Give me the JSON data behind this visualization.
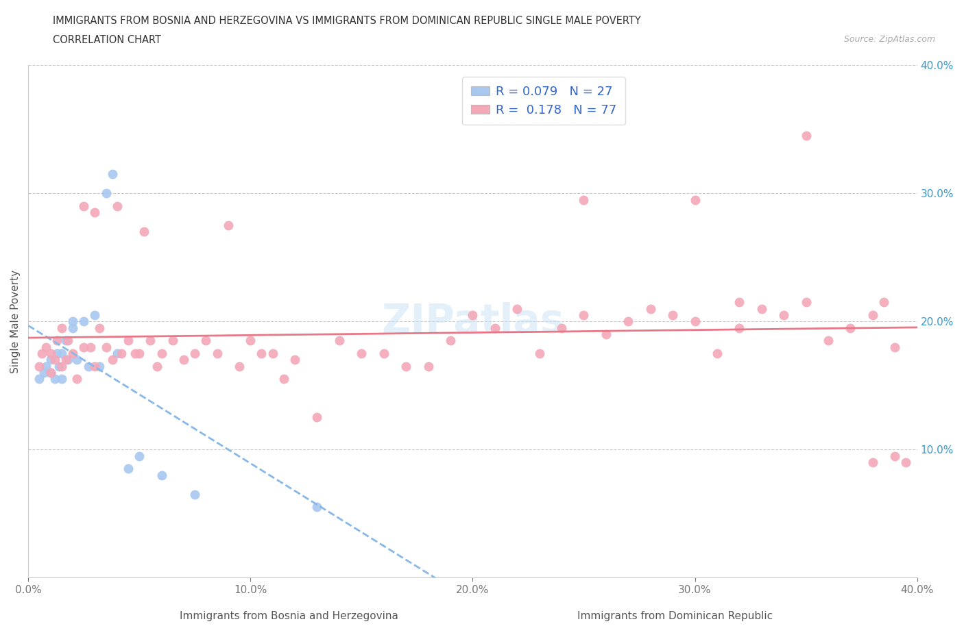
{
  "title_line1": "IMMIGRANTS FROM BOSNIA AND HERZEGOVINA VS IMMIGRANTS FROM DOMINICAN REPUBLIC SINGLE MALE POVERTY",
  "title_line2": "CORRELATION CHART",
  "source_text": "Source: ZipAtlas.com",
  "ylabel": "Single Male Poverty",
  "xlim": [
    0.0,
    0.4
  ],
  "ylim": [
    0.0,
    0.4
  ],
  "xtick_labels": [
    "0.0%",
    "10.0%",
    "20.0%",
    "30.0%",
    "40.0%"
  ],
  "xtick_vals": [
    0.0,
    0.1,
    0.2,
    0.3,
    0.4
  ],
  "ytick_labels": [
    "10.0%",
    "20.0%",
    "30.0%",
    "40.0%"
  ],
  "ytick_vals": [
    0.1,
    0.2,
    0.3,
    0.4
  ],
  "bosnia_color": "#a8c8f0",
  "dominican_color": "#f4a8b8",
  "R_bosnia": 0.079,
  "N_bosnia": 27,
  "R_dominican": 0.178,
  "N_dominican": 77,
  "watermark": "ZIPatlas",
  "bosnia_x": [
    0.005,
    0.007,
    0.008,
    0.01,
    0.01,
    0.012,
    0.013,
    0.014,
    0.015,
    0.015,
    0.017,
    0.018,
    0.02,
    0.02,
    0.022,
    0.025,
    0.027,
    0.03,
    0.032,
    0.035,
    0.038,
    0.04,
    0.045,
    0.05,
    0.06,
    0.075,
    0.13
  ],
  "bosnia_y": [
    0.155,
    0.16,
    0.165,
    0.16,
    0.17,
    0.155,
    0.175,
    0.165,
    0.175,
    0.155,
    0.185,
    0.17,
    0.195,
    0.2,
    0.17,
    0.2,
    0.165,
    0.205,
    0.165,
    0.3,
    0.315,
    0.175,
    0.085,
    0.095,
    0.08,
    0.065,
    0.055
  ],
  "dominican_x": [
    0.005,
    0.006,
    0.008,
    0.01,
    0.01,
    0.012,
    0.013,
    0.015,
    0.015,
    0.017,
    0.018,
    0.02,
    0.022,
    0.025,
    0.025,
    0.028,
    0.03,
    0.03,
    0.032,
    0.035,
    0.038,
    0.04,
    0.042,
    0.045,
    0.048,
    0.05,
    0.052,
    0.055,
    0.058,
    0.06,
    0.065,
    0.07,
    0.075,
    0.08,
    0.085,
    0.09,
    0.095,
    0.1,
    0.105,
    0.11,
    0.115,
    0.12,
    0.13,
    0.14,
    0.15,
    0.16,
    0.17,
    0.18,
    0.19,
    0.2,
    0.21,
    0.22,
    0.23,
    0.24,
    0.25,
    0.26,
    0.27,
    0.28,
    0.29,
    0.3,
    0.31,
    0.32,
    0.33,
    0.34,
    0.35,
    0.36,
    0.37,
    0.38,
    0.385,
    0.39,
    0.25,
    0.3,
    0.32,
    0.35,
    0.38,
    0.39,
    0.395
  ],
  "dominican_y": [
    0.165,
    0.175,
    0.18,
    0.16,
    0.175,
    0.17,
    0.185,
    0.165,
    0.195,
    0.17,
    0.185,
    0.175,
    0.155,
    0.18,
    0.29,
    0.18,
    0.165,
    0.285,
    0.195,
    0.18,
    0.17,
    0.29,
    0.175,
    0.185,
    0.175,
    0.175,
    0.27,
    0.185,
    0.165,
    0.175,
    0.185,
    0.17,
    0.175,
    0.185,
    0.175,
    0.275,
    0.165,
    0.185,
    0.175,
    0.175,
    0.155,
    0.17,
    0.125,
    0.185,
    0.175,
    0.175,
    0.165,
    0.165,
    0.185,
    0.205,
    0.195,
    0.21,
    0.175,
    0.195,
    0.205,
    0.19,
    0.2,
    0.21,
    0.205,
    0.2,
    0.175,
    0.195,
    0.21,
    0.205,
    0.215,
    0.185,
    0.195,
    0.205,
    0.215,
    0.18,
    0.295,
    0.295,
    0.215,
    0.345,
    0.09,
    0.095,
    0.09
  ]
}
